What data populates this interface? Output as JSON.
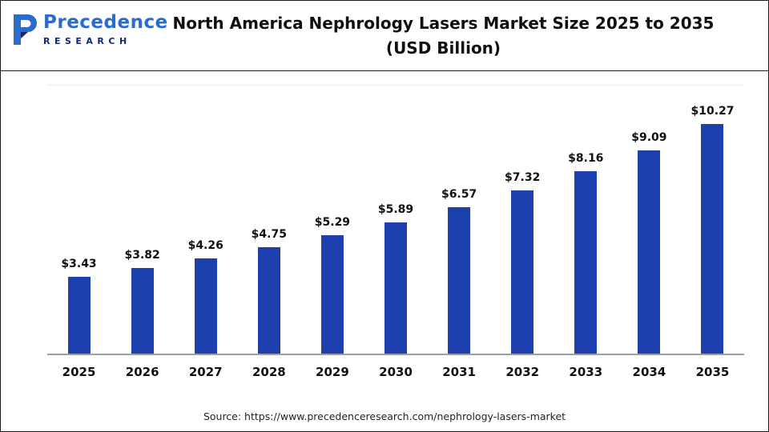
{
  "logo": {
    "name": "Precedence",
    "subtitle": "RESEARCH"
  },
  "header": {
    "title_line1": "North America Nephrology Lasers Market Size 2025 to 2035",
    "title_line2": "(USD Billion)"
  },
  "footer": {
    "source": "Source: https://www.precedenceresearch.com/nephrology-lasers-market"
  },
  "chart_data": {
    "type": "bar",
    "title": "North America Nephrology Lasers Market Size 2025 to 2035 (USD Billion)",
    "categories": [
      "2025",
      "2026",
      "2027",
      "2028",
      "2029",
      "2030",
      "2031",
      "2032",
      "2033",
      "2034",
      "2035"
    ],
    "values": [
      3.43,
      3.82,
      4.26,
      4.75,
      5.29,
      5.89,
      6.57,
      7.32,
      8.16,
      9.09,
      10.27
    ],
    "value_prefix": "$",
    "xlabel": "",
    "ylabel": "",
    "ylim": [
      0,
      12
    ],
    "grid": false,
    "legend": "none",
    "bar_color": "#1e3fae",
    "label_color": "#101010",
    "axis_line_color": "#9aa0a6"
  }
}
